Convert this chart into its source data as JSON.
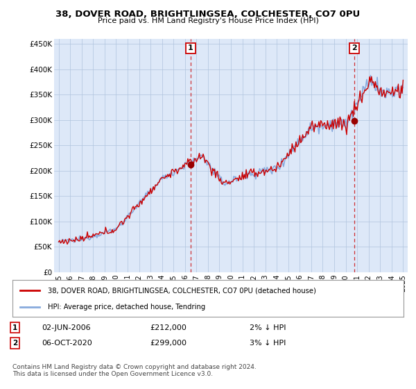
{
  "title1": "38, DOVER ROAD, BRIGHTLINGSEA, COLCHESTER, CO7 0PU",
  "title2": "Price paid vs. HM Land Registry's House Price Index (HPI)",
  "ylabel_ticks": [
    "£0",
    "£50K",
    "£100K",
    "£150K",
    "£200K",
    "£250K",
    "£300K",
    "£350K",
    "£400K",
    "£450K"
  ],
  "ytick_values": [
    0,
    50000,
    100000,
    150000,
    200000,
    250000,
    300000,
    350000,
    400000,
    450000
  ],
  "ylim": [
    0,
    460000
  ],
  "xlim_start": 1994.6,
  "xlim_end": 2025.4,
  "xtick_years": [
    1995,
    1996,
    1997,
    1998,
    1999,
    2000,
    2001,
    2002,
    2003,
    2004,
    2005,
    2006,
    2007,
    2008,
    2009,
    2010,
    2011,
    2012,
    2013,
    2014,
    2015,
    2016,
    2017,
    2018,
    2019,
    2020,
    2021,
    2022,
    2023,
    2024,
    2025
  ],
  "sale1_x": 2006.5,
  "sale1_y": 212000,
  "sale1_label": "1",
  "sale2_x": 2020.75,
  "sale2_y": 299000,
  "sale2_label": "2",
  "line_color_property": "#cc0000",
  "line_color_hpi": "#88aadd",
  "annotation_color": "#990000",
  "dashed_line_color": "#cc0000",
  "legend_label1": "38, DOVER ROAD, BRIGHTLINGSEA, COLCHESTER, CO7 0PU (detached house)",
  "legend_label2": "HPI: Average price, detached house, Tendring",
  "footer": "Contains HM Land Registry data © Crown copyright and database right 2024.\nThis data is licensed under the Open Government Licence v3.0.",
  "bg_color": "#dde8f8",
  "plot_bg_color": "#dde8f8",
  "fig_bg_color": "#ffffff"
}
